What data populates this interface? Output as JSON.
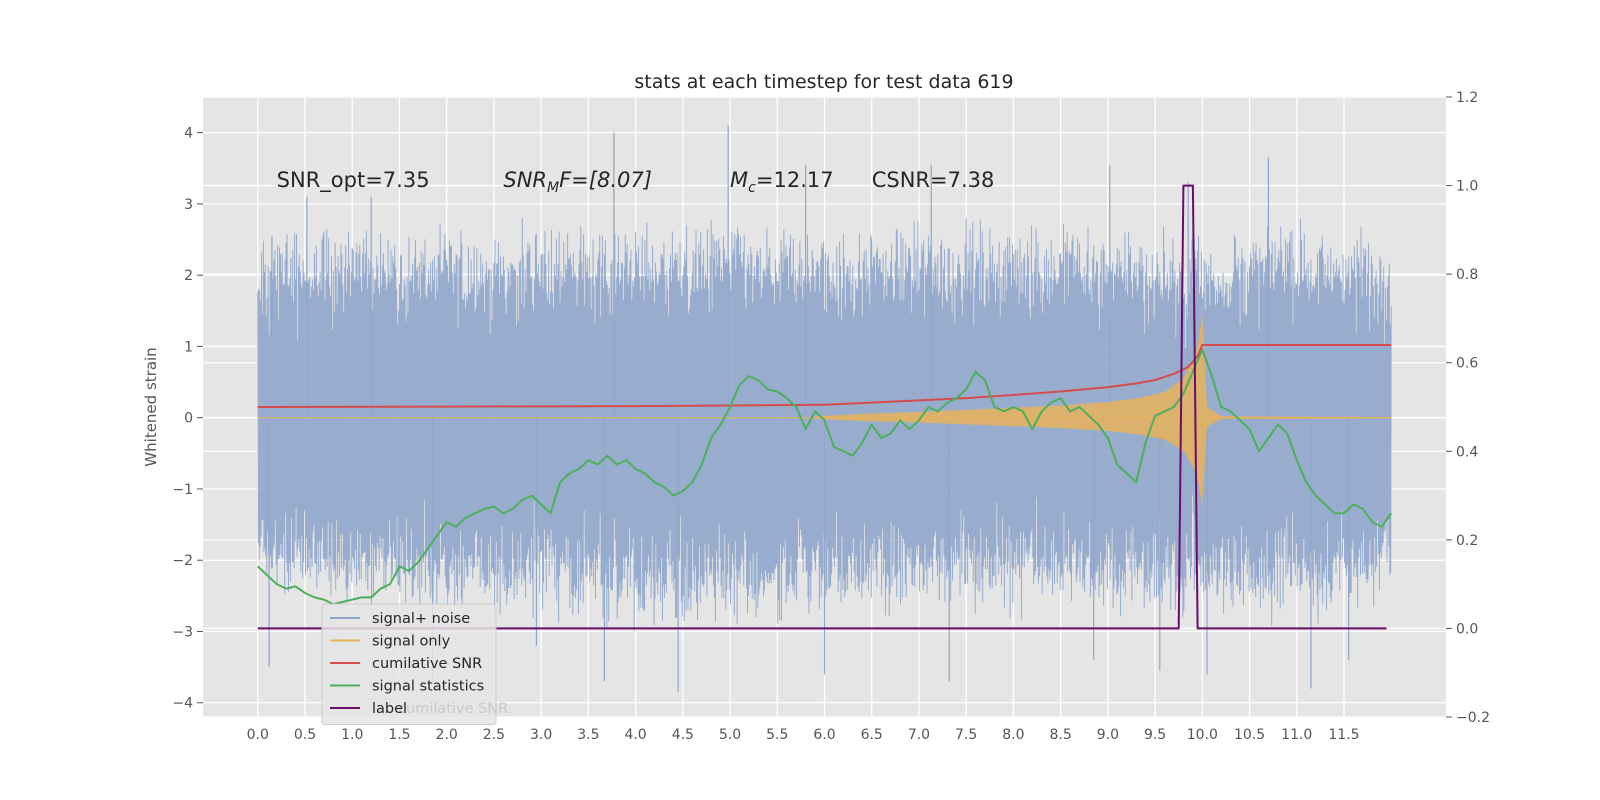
{
  "chart_data": {
    "type": "line",
    "title": "stats at each timestep for test data 619",
    "xlabel": "",
    "ylabel": "Whitened strain",
    "y2label": "",
    "xlim": [
      -0.58,
      12.58
    ],
    "ylim": [
      -4.2,
      4.5
    ],
    "y2lim": [
      -0.2,
      1.2
    ],
    "xticks": [
      "0.0",
      "0.5",
      "1.0",
      "1.5",
      "2.0",
      "2.5",
      "3.0",
      "3.5",
      "4.0",
      "4.5",
      "5.0",
      "5.5",
      "6.0",
      "6.5",
      "7.0",
      "7.5",
      "8.0",
      "8.5",
      "9.0",
      "9.5",
      "10.0",
      "10.5",
      "11.0",
      "11.5"
    ],
    "yticks": [
      "4",
      "3",
      "2",
      "1",
      "0",
      "−1",
      "−2",
      "−3",
      "−4"
    ],
    "y2ticks": [
      "1.2",
      "1.0",
      "0.8",
      "0.6",
      "0.4",
      "0.2",
      "0.0",
      "−0.2"
    ],
    "grid": true,
    "legend_position": "lower-left",
    "annotations": [
      {
        "text": "SNR_opt=7.35",
        "x": 0.2,
        "y": 3.35
      },
      {
        "text": "SNR",
        "sub": "M",
        "suffix": "F=[8.07]",
        "x": 2.6,
        "y": 3.35
      },
      {
        "text": "M",
        "sub": "c",
        "suffix": "=12.17",
        "x": 5.0,
        "y": 3.35
      },
      {
        "text": "CSNR=7.38",
        "x": 6.5,
        "y": 3.35
      }
    ],
    "noise_envelope": {
      "x": [
        0.0,
        1.0,
        2.0,
        3.0,
        4.0,
        5.0,
        6.0,
        7.0,
        8.0,
        9.0,
        10.0,
        11.0,
        12.0
      ],
      "upper": [
        2.8,
        2.9,
        2.9,
        2.9,
        3.0,
        3.0,
        2.9,
        2.9,
        3.0,
        2.9,
        2.8,
        3.0,
        2.8
      ],
      "lower": [
        -2.8,
        -2.9,
        -3.0,
        -3.0,
        -3.2,
        -3.1,
        -3.0,
        -3.0,
        -2.9,
        -3.0,
        -3.0,
        -3.1,
        -2.8
      ],
      "spikes": [
        [
          0.15,
          2.55
        ],
        [
          0.12,
          -3.5
        ],
        [
          0.52,
          3.1
        ],
        [
          1.2,
          3.1
        ],
        [
          1.85,
          -3.7
        ],
        [
          2.95,
          -3.2
        ],
        [
          3.77,
          4.0
        ],
        [
          3.67,
          -3.7
        ],
        [
          4.45,
          -3.85
        ],
        [
          4.98,
          4.1
        ],
        [
          5.8,
          3.55
        ],
        [
          6.0,
          -3.6
        ],
        [
          7.13,
          3.55
        ],
        [
          7.32,
          -3.7
        ],
        [
          8.85,
          -3.4
        ],
        [
          9.02,
          3.55
        ],
        [
          9.55,
          -3.55
        ],
        [
          9.85,
          3.3
        ],
        [
          10.05,
          -3.6
        ],
        [
          10.7,
          3.65
        ],
        [
          11.15,
          -3.8
        ],
        [
          11.55,
          -3.4
        ]
      ]
    },
    "series": [
      {
        "name": "signal+ noise",
        "color": "#8fa6cb",
        "axis": "left",
        "kind": "noise"
      },
      {
        "name": "signal only",
        "color": "#e8b15a",
        "axis": "left",
        "kind": "chirp",
        "x": [
          5.9,
          6.5,
          7.0,
          7.5,
          8.0,
          8.5,
          9.0,
          9.3,
          9.6,
          9.8,
          9.9,
          9.95,
          10.0,
          10.05,
          10.2,
          12.0
        ],
        "amplitude": [
          0.02,
          0.06,
          0.08,
          0.11,
          0.14,
          0.17,
          0.22,
          0.27,
          0.36,
          0.55,
          0.8,
          1.0,
          1.45,
          0.15,
          0.02,
          0.01
        ]
      },
      {
        "name": "cumilative SNR",
        "color": "#d64b4b",
        "axis": "right",
        "x": [
          0.0,
          2.0,
          4.0,
          6.0,
          7.0,
          7.5,
          8.0,
          8.5,
          9.0,
          9.3,
          9.5,
          9.7,
          9.85,
          9.95,
          10.0,
          12.0
        ],
        "y": [
          0.5,
          0.501,
          0.502,
          0.505,
          0.515,
          0.52,
          0.527,
          0.535,
          0.545,
          0.553,
          0.561,
          0.575,
          0.59,
          0.615,
          0.64,
          0.64
        ]
      },
      {
        "name": "signal statistics",
        "color": "#4daf5b",
        "axis": "right",
        "x": [
          0.0,
          0.1,
          0.2,
          0.3,
          0.4,
          0.5,
          0.6,
          0.7,
          0.8,
          0.9,
          1.0,
          1.1,
          1.2,
          1.3,
          1.4,
          1.5,
          1.6,
          1.7,
          1.8,
          1.9,
          2.0,
          2.1,
          2.2,
          2.3,
          2.4,
          2.5,
          2.6,
          2.7,
          2.8,
          2.9,
          3.0,
          3.1,
          3.2,
          3.3,
          3.4,
          3.5,
          3.6,
          3.7,
          3.8,
          3.9,
          4.0,
          4.1,
          4.2,
          4.3,
          4.4,
          4.5,
          4.6,
          4.7,
          4.8,
          4.9,
          5.0,
          5.1,
          5.2,
          5.3,
          5.4,
          5.5,
          5.6,
          5.7,
          5.8,
          5.9,
          6.0,
          6.1,
          6.2,
          6.3,
          6.4,
          6.5,
          6.6,
          6.7,
          6.8,
          6.9,
          7.0,
          7.1,
          7.2,
          7.3,
          7.4,
          7.5,
          7.6,
          7.7,
          7.8,
          7.9,
          8.0,
          8.1,
          8.2,
          8.3,
          8.4,
          8.5,
          8.6,
          8.7,
          8.8,
          8.9,
          9.0,
          9.1,
          9.2,
          9.3,
          9.4,
          9.5,
          9.6,
          9.7,
          9.8,
          9.9,
          10.0,
          10.1,
          10.2,
          10.3,
          10.4,
          10.5,
          10.6,
          10.7,
          10.8,
          10.9,
          11.0,
          11.1,
          11.2,
          11.3,
          11.4,
          11.5,
          11.6,
          11.7,
          11.8,
          11.9,
          12.0
        ],
        "y": [
          0.14,
          0.12,
          0.1,
          0.09,
          0.095,
          0.08,
          0.07,
          0.065,
          0.055,
          0.06,
          0.065,
          0.07,
          0.07,
          0.09,
          0.1,
          0.14,
          0.13,
          0.15,
          0.18,
          0.21,
          0.24,
          0.23,
          0.25,
          0.26,
          0.27,
          0.275,
          0.26,
          0.27,
          0.29,
          0.3,
          0.28,
          0.26,
          0.33,
          0.35,
          0.36,
          0.38,
          0.37,
          0.39,
          0.37,
          0.38,
          0.36,
          0.35,
          0.33,
          0.32,
          0.3,
          0.31,
          0.33,
          0.37,
          0.43,
          0.46,
          0.5,
          0.55,
          0.57,
          0.56,
          0.54,
          0.535,
          0.52,
          0.5,
          0.45,
          0.49,
          0.47,
          0.41,
          0.4,
          0.39,
          0.42,
          0.46,
          0.43,
          0.44,
          0.47,
          0.45,
          0.47,
          0.5,
          0.49,
          0.51,
          0.52,
          0.54,
          0.58,
          0.56,
          0.5,
          0.49,
          0.5,
          0.49,
          0.45,
          0.49,
          0.51,
          0.52,
          0.49,
          0.5,
          0.48,
          0.46,
          0.43,
          0.37,
          0.35,
          0.33,
          0.42,
          0.48,
          0.49,
          0.5,
          0.53,
          0.58,
          0.63,
          0.57,
          0.5,
          0.49,
          0.47,
          0.45,
          0.4,
          0.43,
          0.46,
          0.44,
          0.38,
          0.33,
          0.3,
          0.28,
          0.26,
          0.26,
          0.28,
          0.27,
          0.24,
          0.23,
          0.26
        ]
      },
      {
        "name": "label",
        "color": "#6a0d6a",
        "axis": "right",
        "x": [
          0.0,
          9.75,
          9.8,
          9.9,
          9.95,
          10.0,
          11.95
        ],
        "y": [
          0.0,
          0.0,
          1.0,
          1.0,
          0.0,
          0.0,
          0.0
        ]
      }
    ],
    "ghost_legend_text": "cumilative SNR",
    "colors": {
      "plot_bg": "#e5e5e5",
      "grid": "#ffffff",
      "text": "#262626",
      "tick_text": "#555555",
      "legend_bg": "#e5e5e5",
      "legend_border": "#cccccc"
    }
  }
}
